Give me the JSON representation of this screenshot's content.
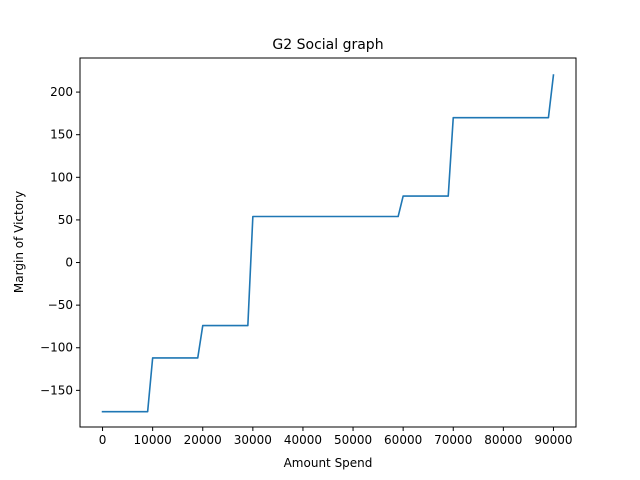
{
  "chart_data": {
    "type": "line",
    "title": "G2 Social graph",
    "xlabel": "Amount Spend",
    "ylabel": "Margin of Victory",
    "xlim": [
      -4500,
      94500
    ],
    "ylim": [
      -193,
      240
    ],
    "x_ticks": [
      0,
      10000,
      20000,
      30000,
      40000,
      50000,
      60000,
      70000,
      80000,
      90000
    ],
    "y_ticks": [
      -150,
      -100,
      -50,
      0,
      50,
      100,
      150,
      200
    ],
    "grid": false,
    "line_color": "#1f77b4",
    "series": [
      {
        "x": [
          0,
          9000,
          10000,
          19000,
          20000,
          29000,
          30000,
          59000,
          60000,
          69000,
          70000,
          89000,
          90000
        ],
        "y": [
          -175,
          -175,
          -112,
          -112,
          -74,
          -74,
          54,
          54,
          78,
          78,
          170,
          170,
          220
        ]
      }
    ]
  }
}
